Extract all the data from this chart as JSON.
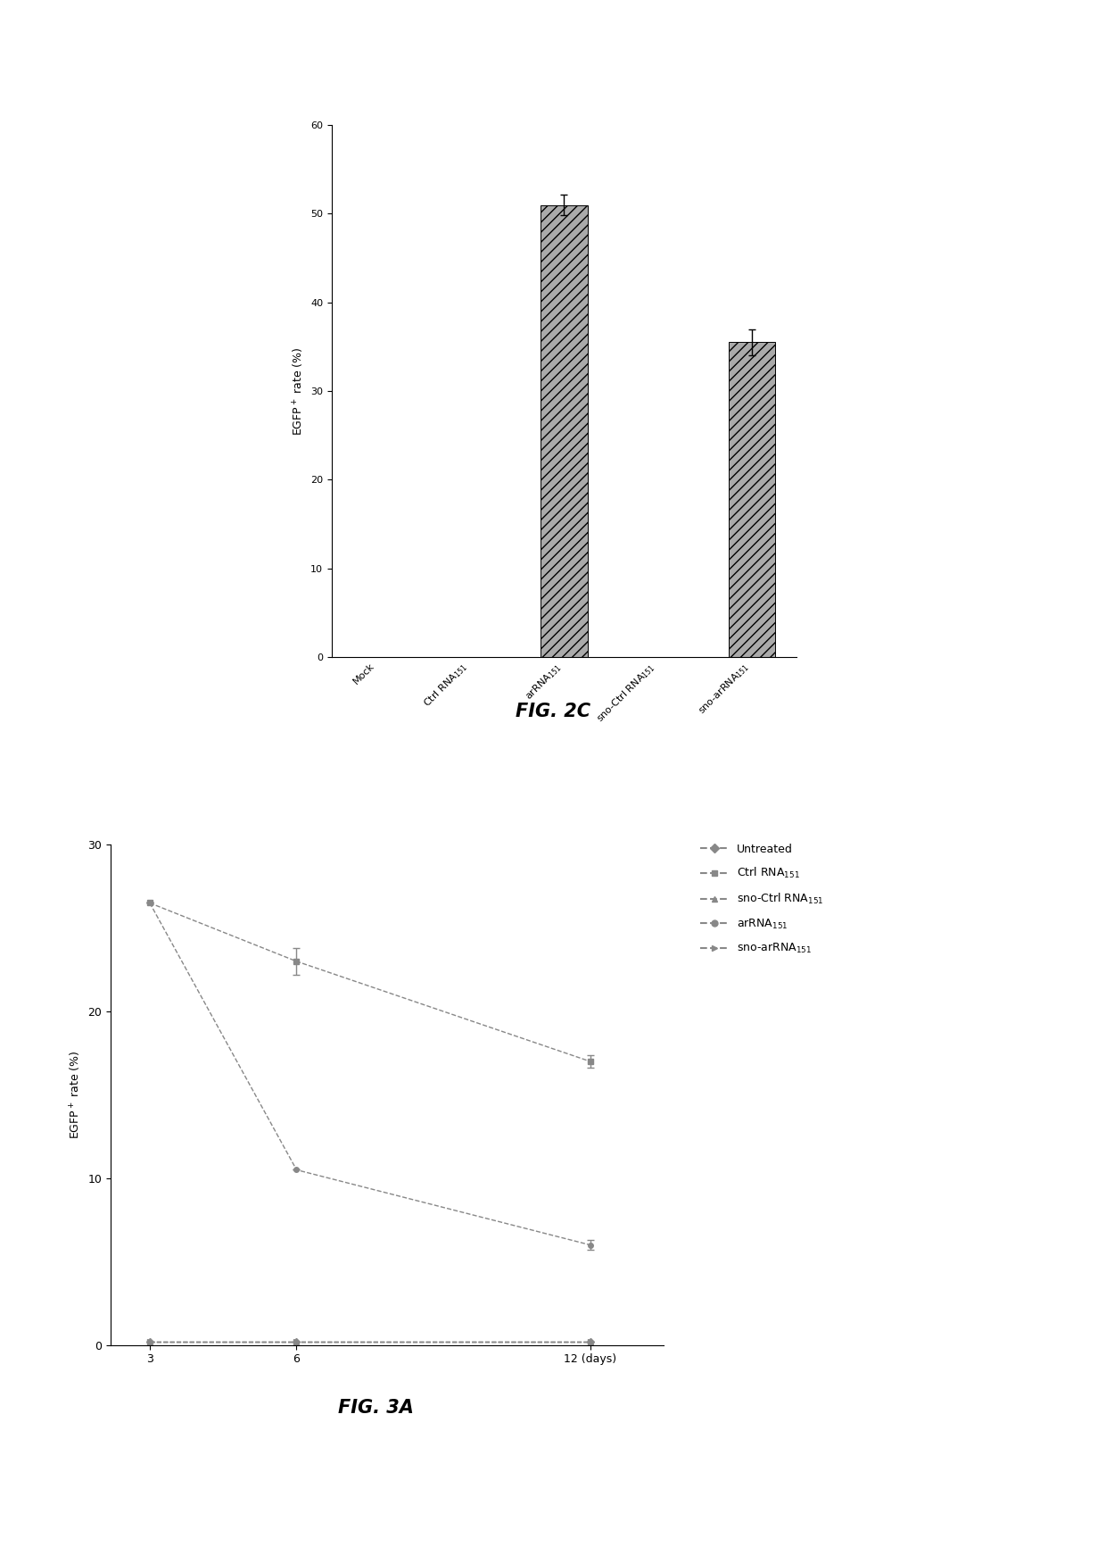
{
  "fig2c": {
    "categories": [
      "Mock",
      "Ctrl RNA$_{151}$",
      "arRNA$_{151}$",
      "sno-Ctrl RNA$_{151}$",
      "sno-arRNA$_{151}$"
    ],
    "values": [
      0.0,
      0.0,
      51.0,
      0.0,
      35.5
    ],
    "errors": [
      0.0,
      0.0,
      1.2,
      0.0,
      1.5
    ],
    "bar_color": "#aaaaaa",
    "bar_hatch": "///",
    "ylim": [
      0,
      60
    ],
    "yticks": [
      0,
      10,
      20,
      30,
      40,
      50,
      60
    ],
    "ylabel": "EGFP$^+$ rate (%)",
    "title": "FIG. 2C"
  },
  "fig3a": {
    "x": [
      3,
      6,
      12
    ],
    "series": [
      {
        "label": "Untreated",
        "y": [
          0.2,
          0.2,
          0.2
        ],
        "errors": [
          0,
          0,
          0
        ],
        "linestyle": "--",
        "marker": "D",
        "markersize": 4
      },
      {
        "label": "Ctrl RNA$_{151}$",
        "y": [
          26.5,
          23.0,
          17.0
        ],
        "errors": [
          0,
          0.8,
          0.4
        ],
        "linestyle": "--",
        "marker": "s",
        "markersize": 4
      },
      {
        "label": "sno-Ctrl RNA$_{151}$",
        "y": [
          0.2,
          0.2,
          0.2
        ],
        "errors": [
          0,
          0,
          0
        ],
        "linestyle": "--",
        "marker": "^",
        "markersize": 4
      },
      {
        "label": "arRNA$_{151}$",
        "y": [
          26.5,
          10.5,
          6.0
        ],
        "errors": [
          0,
          0,
          0.3
        ],
        "linestyle": "--",
        "marker": "o",
        "markersize": 4
      },
      {
        "label": "sno-arRNA$_{151}$",
        "y": [
          0.2,
          0.2,
          0.2
        ],
        "errors": [
          0,
          0,
          0
        ],
        "linestyle": "--",
        "marker": ">",
        "markersize": 4
      }
    ],
    "ylim": [
      0,
      30
    ],
    "yticks": [
      0,
      10,
      20,
      30
    ],
    "ylabel": "EGFP$^+$ rate (%)",
    "title": "FIG. 3A"
  },
  "background_color": "#ffffff"
}
